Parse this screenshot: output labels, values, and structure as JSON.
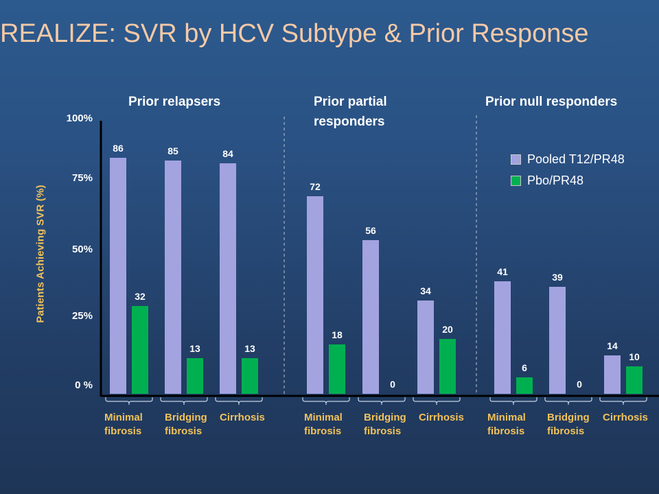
{
  "title": "REALIZE: SVR by HCV Subtype & Prior Response",
  "chart_data": {
    "type": "bar",
    "ylabel": "Patients Achieving SVR (%)",
    "yticks": [
      "0 %",
      "25%",
      "50%",
      "75%",
      "100%"
    ],
    "ylim": [
      0,
      100
    ],
    "legend_position": "top-right",
    "series": [
      {
        "name": "Pooled T12/PR48",
        "color": "#a3a3e0"
      },
      {
        "name": "Pbo/PR48",
        "color": "#00b050"
      }
    ],
    "groups": [
      {
        "title": "Prior relapsers",
        "categories": [
          "Minimal\nfibrosis",
          "Bridging\nfibrosis",
          "Cirrhosis"
        ],
        "values": [
          [
            86,
            32
          ],
          [
            85,
            13
          ],
          [
            84,
            13
          ]
        ]
      },
      {
        "title": "Prior partial\nresponders",
        "categories": [
          "Minimal\nfibrosis",
          "Bridging\nfibrosis",
          "Cirrhosis"
        ],
        "values": [
          [
            72,
            18
          ],
          [
            56,
            0
          ],
          [
            34,
            20
          ]
        ]
      },
      {
        "title": "Prior null responders",
        "categories": [
          "Minimal\nfibrosis",
          "Bridging\nfibrosis",
          "Cirrhosis"
        ],
        "values": [
          [
            41,
            6
          ],
          [
            39,
            0
          ],
          [
            14,
            10
          ]
        ]
      }
    ]
  }
}
